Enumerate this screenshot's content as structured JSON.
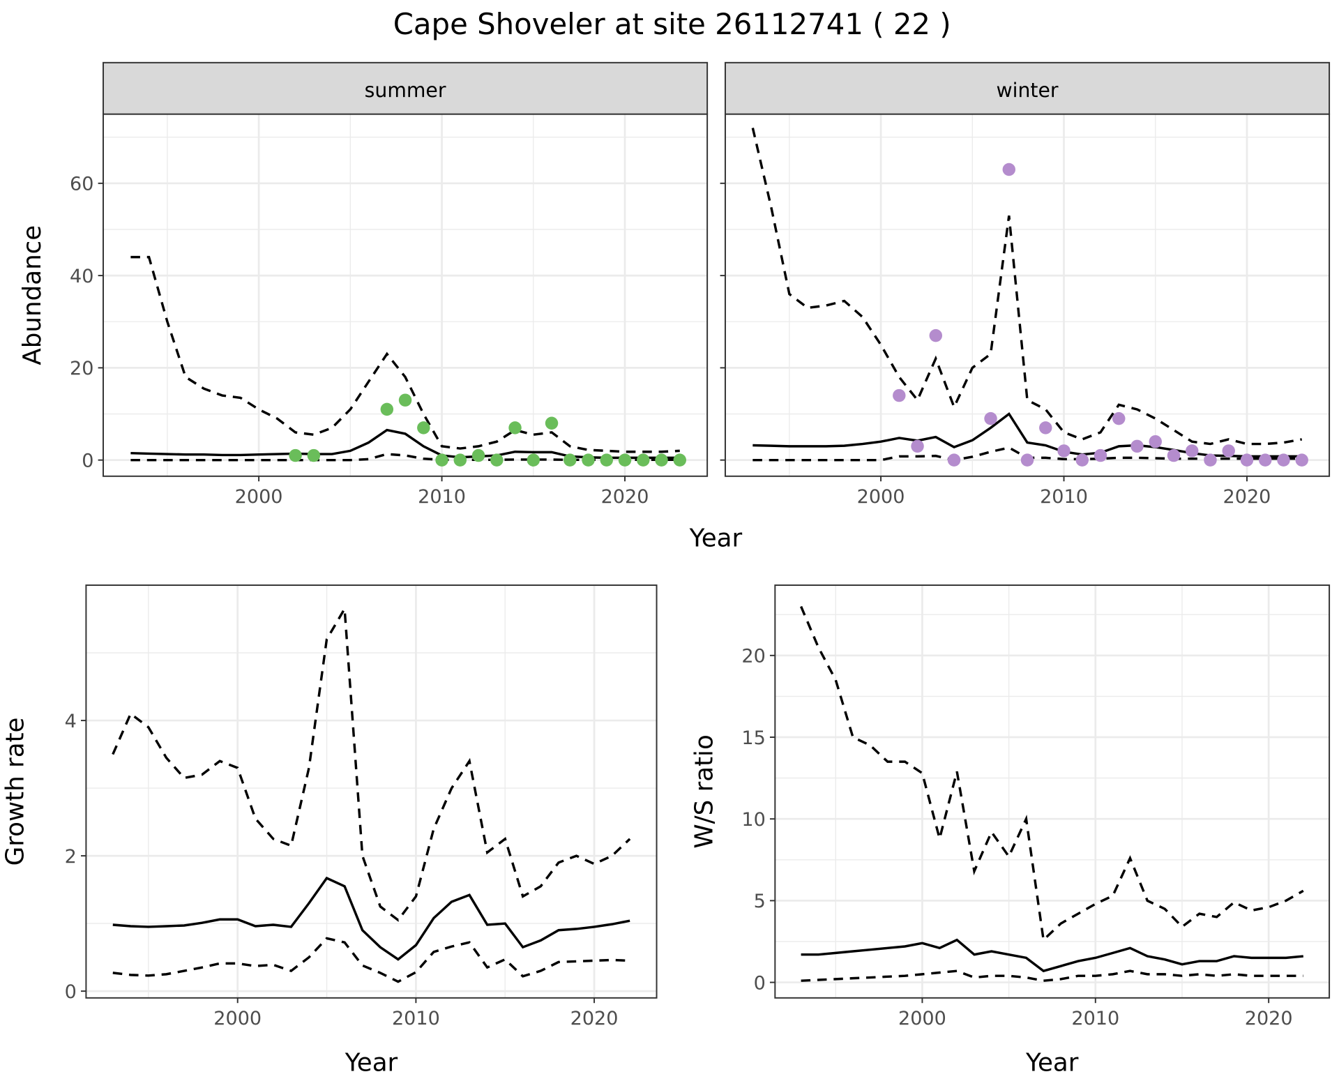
{
  "title": "Cape Shoveler at site 26112741 ( 22 )",
  "colors": {
    "summer_points": "#6abd5a",
    "winter_points": "#b48ccd",
    "lines": "#000000",
    "strip_bg": "#d9d9d9",
    "grid": "#ebebeb"
  },
  "chart_data": [
    {
      "type": "line",
      "strip": "summer",
      "xlabel": "Year",
      "ylabel": "Abundance",
      "xlim": [
        1991.5,
        2024.5
      ],
      "ylim": [
        -3.5,
        75
      ],
      "xticks": [
        2000,
        2010,
        2020
      ],
      "yticks": [
        0,
        20,
        40,
        60
      ],
      "x": [
        1993,
        1994,
        1995,
        1996,
        1997,
        1998,
        1999,
        2000,
        2001,
        2002,
        2003,
        2004,
        2005,
        2006,
        2007,
        2008,
        2009,
        2010,
        2011,
        2012,
        2013,
        2014,
        2015,
        2016,
        2017,
        2018,
        2019,
        2020,
        2021,
        2022,
        2023
      ],
      "series": [
        {
          "style": "solid",
          "values": [
            1.5,
            1.4,
            1.3,
            1.2,
            1.2,
            1.1,
            1.1,
            1.2,
            1.3,
            1.4,
            1.3,
            1.3,
            2,
            3.8,
            6.5,
            5.7,
            3,
            1,
            0.6,
            0.8,
            1,
            1.8,
            1.7,
            1.7,
            0.8,
            0.6,
            0.5,
            0.5,
            0.5,
            0.5,
            0.5
          ]
        },
        {
          "style": "dashed",
          "values": [
            44,
            44,
            30,
            18,
            15.5,
            14,
            13.5,
            11,
            9,
            6,
            5.5,
            7,
            11,
            17,
            23,
            18,
            10,
            3,
            2.5,
            3,
            4,
            6.5,
            5.5,
            6,
            3,
            2.2,
            2,
            1.8,
            1.8,
            1.8,
            2
          ]
        },
        {
          "style": "dashed",
          "values": [
            0,
            0,
            0,
            0,
            0,
            0,
            0,
            0,
            0,
            0,
            0,
            0,
            0,
            0.2,
            1.3,
            1,
            0.3,
            0.05,
            0.05,
            0.05,
            0.05,
            0.1,
            0.1,
            0.1,
            0.05,
            0.05,
            0.05,
            0.05,
            0.05,
            0.05,
            0.05
          ]
        }
      ],
      "points": {
        "x": [
          2002,
          2003,
          2007,
          2008,
          2009,
          2010,
          2011,
          2012,
          2013,
          2014,
          2015,
          2016,
          2017,
          2018,
          2019,
          2020,
          2021,
          2022,
          2023
        ],
        "y": [
          1,
          1,
          11,
          13,
          7,
          0,
          0,
          1,
          0,
          7,
          0,
          8,
          0,
          0,
          0,
          0,
          0,
          0,
          0
        ]
      }
    },
    {
      "type": "line",
      "strip": "winter",
      "xlabel": "Year",
      "ylabel": "Abundance",
      "xlim": [
        1991.5,
        2024.5
      ],
      "ylim": [
        -3.5,
        75
      ],
      "xticks": [
        2000,
        2010,
        2020
      ],
      "yticks": [
        0,
        20,
        40,
        60
      ],
      "x": [
        1993,
        1994,
        1995,
        1996,
        1997,
        1998,
        1999,
        2000,
        2001,
        2002,
        2003,
        2004,
        2005,
        2006,
        2007,
        2008,
        2009,
        2010,
        2011,
        2012,
        2013,
        2014,
        2015,
        2016,
        2017,
        2018,
        2019,
        2020,
        2021,
        2022,
        2023
      ],
      "series": [
        {
          "style": "solid",
          "values": [
            3.2,
            3.1,
            3,
            3,
            3,
            3.1,
            3.5,
            4,
            4.8,
            4.2,
            5,
            2.8,
            4.3,
            7,
            10,
            3.8,
            3.2,
            1.8,
            1.2,
            1.6,
            3,
            3.2,
            2.8,
            2.2,
            1.5,
            1,
            0.9,
            0.8,
            0.8,
            0.8,
            0.8
          ]
        },
        {
          "style": "dashed",
          "values": [
            72,
            55,
            36,
            33,
            33.5,
            34.5,
            31,
            25,
            18,
            13,
            22,
            11.5,
            20,
            23,
            53,
            13,
            11,
            6,
            4.5,
            6,
            12,
            11,
            9,
            6.5,
            4,
            3.5,
            4.5,
            3.5,
            3.5,
            3.8,
            4.5
          ]
        },
        {
          "style": "dashed",
          "values": [
            0,
            0,
            0,
            0,
            0,
            0,
            0,
            0,
            0.8,
            0.8,
            0.9,
            0,
            0.7,
            1.8,
            2.7,
            0.5,
            0.5,
            0.2,
            0.2,
            0.3,
            0.5,
            0.5,
            0.4,
            0.3,
            0.3,
            0.3,
            0.3,
            0.3,
            0.3,
            0.3,
            0.3
          ]
        }
      ],
      "points": {
        "x": [
          2001,
          2002,
          2003,
          2004,
          2006,
          2007,
          2008,
          2009,
          2010,
          2011,
          2012,
          2013,
          2014,
          2015,
          2016,
          2017,
          2018,
          2019,
          2020,
          2021,
          2022,
          2023
        ],
        "y": [
          14,
          3,
          27,
          0,
          9,
          63,
          0,
          7,
          2,
          0,
          1,
          9,
          3,
          4,
          1,
          2,
          0,
          2,
          0,
          0,
          0,
          0
        ]
      }
    },
    {
      "type": "line",
      "xlabel": "Year",
      "ylabel": "Growth rate",
      "xlim": [
        1991.5,
        2023.5
      ],
      "ylim": [
        -0.1,
        6
      ],
      "xticks": [
        2000,
        2010,
        2020
      ],
      "yticks": [
        0,
        2,
        4
      ],
      "x": [
        1993,
        1994,
        1995,
        1996,
        1997,
        1998,
        1999,
        2000,
        2001,
        2002,
        2003,
        2004,
        2005,
        2006,
        2007,
        2008,
        2009,
        2010,
        2011,
        2012,
        2013,
        2014,
        2015,
        2016,
        2017,
        2018,
        2019,
        2020,
        2021,
        2022
      ],
      "series": [
        {
          "style": "solid",
          "values": [
            0.98,
            0.96,
            0.95,
            0.96,
            0.97,
            1.01,
            1.06,
            1.06,
            0.96,
            0.98,
            0.95,
            1.3,
            1.67,
            1.55,
            0.9,
            0.65,
            0.47,
            0.68,
            1.08,
            1.32,
            1.42,
            0.98,
            1.0,
            0.65,
            0.75,
            0.9,
            0.92,
            0.95,
            0.99,
            1.04
          ]
        },
        {
          "style": "dashed",
          "values": [
            3.5,
            4.1,
            3.9,
            3.45,
            3.15,
            3.2,
            3.4,
            3.3,
            2.55,
            2.25,
            2.15,
            3.3,
            5.2,
            5.65,
            2.0,
            1.25,
            1.05,
            1.4,
            2.4,
            3.0,
            3.4,
            2.05,
            2.25,
            1.4,
            1.55,
            1.9,
            2.0,
            1.88,
            2.0,
            2.25
          ]
        },
        {
          "style": "dashed",
          "values": [
            0.27,
            0.24,
            0.23,
            0.25,
            0.3,
            0.35,
            0.41,
            0.41,
            0.37,
            0.39,
            0.3,
            0.5,
            0.78,
            0.72,
            0.38,
            0.27,
            0.14,
            0.28,
            0.58,
            0.66,
            0.72,
            0.35,
            0.47,
            0.22,
            0.3,
            0.43,
            0.44,
            0.45,
            0.46,
            0.45
          ]
        }
      ]
    },
    {
      "type": "line",
      "xlabel": "Year",
      "ylabel": "W/S ratio",
      "xlim": [
        1991.5,
        2023.5
      ],
      "ylim": [
        -0.95,
        24.3
      ],
      "xticks": [
        2000,
        2010,
        2020
      ],
      "yticks": [
        0,
        5,
        10,
        15,
        20
      ],
      "x": [
        1993,
        1994,
        1995,
        1996,
        1997,
        1998,
        1999,
        2000,
        2001,
        2002,
        2003,
        2004,
        2005,
        2006,
        2007,
        2008,
        2009,
        2010,
        2011,
        2012,
        2013,
        2014,
        2015,
        2016,
        2017,
        2018,
        2019,
        2020,
        2021,
        2022
      ],
      "series": [
        {
          "style": "solid",
          "values": [
            1.7,
            1.7,
            1.8,
            1.9,
            2.0,
            2.1,
            2.2,
            2.4,
            2.1,
            2.6,
            1.7,
            1.9,
            1.7,
            1.5,
            0.7,
            1.0,
            1.3,
            1.5,
            1.8,
            2.1,
            1.6,
            1.4,
            1.1,
            1.3,
            1.3,
            1.6,
            1.5,
            1.5,
            1.5,
            1.6
          ]
        },
        {
          "style": "dashed",
          "values": [
            23,
            20.5,
            18.5,
            15,
            14.5,
            13.5,
            13.5,
            12.8,
            8.8,
            12.9,
            6.8,
            9.2,
            7.7,
            10,
            2.6,
            3.6,
            4.2,
            4.8,
            5.3,
            7.6,
            5.0,
            4.5,
            3.4,
            4.2,
            4.0,
            4.9,
            4.4,
            4.6,
            5.0,
            5.6
          ]
        },
        {
          "style": "dashed",
          "values": [
            0.1,
            0.15,
            0.2,
            0.25,
            0.3,
            0.35,
            0.4,
            0.5,
            0.6,
            0.7,
            0.3,
            0.4,
            0.4,
            0.3,
            0.1,
            0.2,
            0.4,
            0.4,
            0.5,
            0.7,
            0.5,
            0.5,
            0.4,
            0.5,
            0.4,
            0.5,
            0.4,
            0.4,
            0.4,
            0.4
          ]
        }
      ]
    }
  ]
}
